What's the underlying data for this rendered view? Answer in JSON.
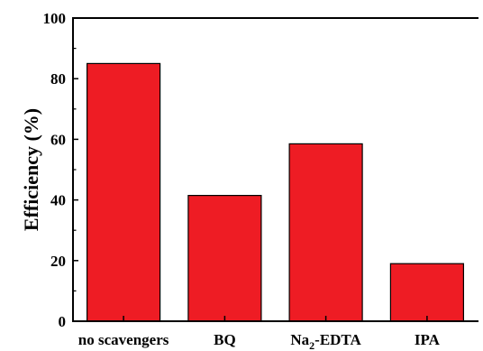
{
  "chart_data": {
    "type": "bar",
    "title": "",
    "xlabel": "",
    "ylabel": "Efficiency (%)",
    "categories": [
      {
        "text": "no scavengers",
        "sub": "",
        "rest": ""
      },
      {
        "text": "BQ",
        "sub": "",
        "rest": ""
      },
      {
        "text": "Na",
        "sub": "2",
        "rest": "-EDTA"
      },
      {
        "text": "IPA",
        "sub": "",
        "rest": ""
      }
    ],
    "values": [
      85,
      41.5,
      58.5,
      19
    ],
    "ylim": [
      0,
      100
    ],
    "yticks": [
      0,
      20,
      40,
      60,
      80,
      100
    ],
    "grid": false,
    "legend": "none",
    "bar_color": "#ee1c24",
    "bar_edge_color": "#000000"
  }
}
